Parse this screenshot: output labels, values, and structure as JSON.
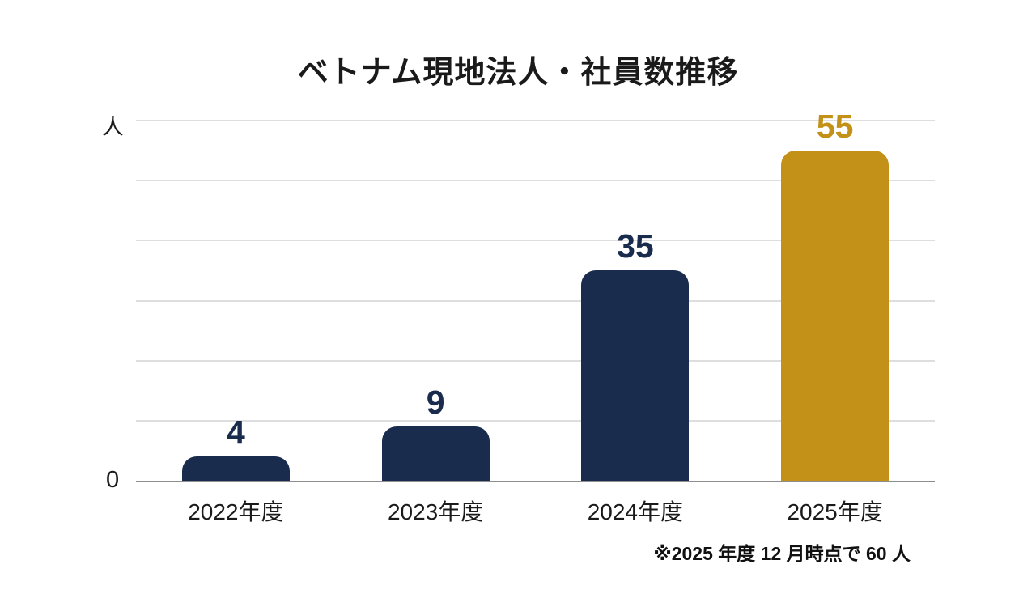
{
  "chart_data": {
    "type": "bar",
    "title": "ベトナム現地法人・社員数推移",
    "unit_label": "人",
    "zero_label": "0",
    "categories": [
      "2022年度",
      "2023年度",
      "2024年度",
      "2025年度"
    ],
    "values": [
      4,
      9,
      35,
      55
    ],
    "series": [
      {
        "name": "社員数",
        "values": [
          4,
          9,
          35,
          55
        ]
      }
    ],
    "bar_colors": [
      "#1a2c4d",
      "#1a2c4d",
      "#1a2c4d",
      "#c39118"
    ],
    "value_label_colors": [
      "#1a2c4d",
      "#1a2c4d",
      "#1a2c4d",
      "#c39118"
    ],
    "ylim": [
      0,
      60
    ],
    "gridline_step": 10,
    "grid": true,
    "legend": "none",
    "footnote": "※2025 年度 12 月時点で 60 人",
    "colors": {
      "navy": "#1a2c4d",
      "gold": "#c39118",
      "gridline": "#dedede",
      "axis": "#8e8e8e",
      "text": "#1a1a1a",
      "background": "#ffffff"
    }
  }
}
